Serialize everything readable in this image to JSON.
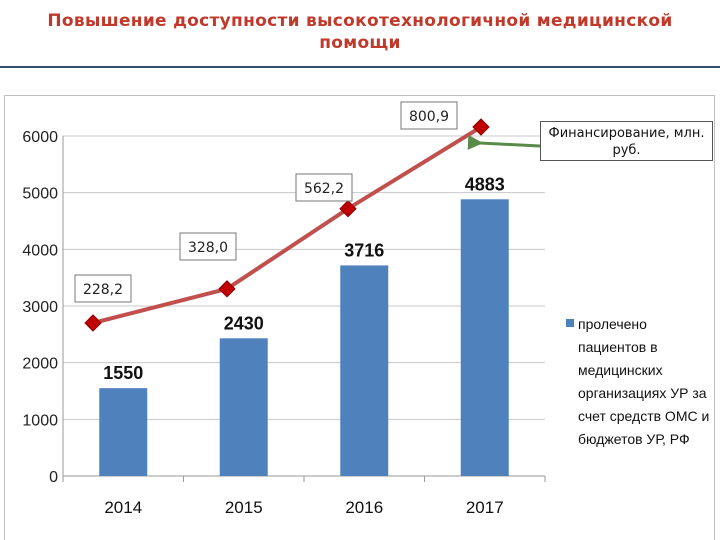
{
  "header": {
    "title": "Повышение доступности высокотехнологичной медицинской помощи"
  },
  "colors": {
    "title": "#c0392b",
    "bars": "#4f81bd",
    "line": "#c0504d",
    "marker": "#c00000",
    "arrow": "#5a8a4a"
  },
  "callout": {
    "text": "Финансирование, млн. руб."
  },
  "legend": {
    "bar_series": "пролечено пациентов в медицинских организациях УР за счет средств ОМС и бюджетов УР, РФ"
  },
  "chart_data": {
    "type": "bar",
    "categories": [
      "2014",
      "2015",
      "2016",
      "2017"
    ],
    "ylim": [
      0,
      6000
    ],
    "yticks": [
      0,
      1000,
      2000,
      3000,
      4000,
      5000,
      6000
    ],
    "grid": "horizontal",
    "legend_position": "right",
    "series": [
      {
        "name": "пролечено пациентов в медицинских организациях УР за счет средств ОМС и бюджетов УР, РФ",
        "type": "bar",
        "values": [
          1550,
          2430,
          3716,
          4883
        ],
        "labels": [
          "1550",
          "2430",
          "3716",
          "4883"
        ]
      },
      {
        "name": "Финансирование, млн. руб.",
        "type": "line",
        "points_x": [
          "2014",
          "2015",
          "2016",
          "2017"
        ],
        "values": [
          228.2,
          328.0,
          562.2,
          800.9
        ],
        "labels": [
          "228,2",
          "328,0",
          "562,2",
          "800,9"
        ]
      }
    ]
  }
}
